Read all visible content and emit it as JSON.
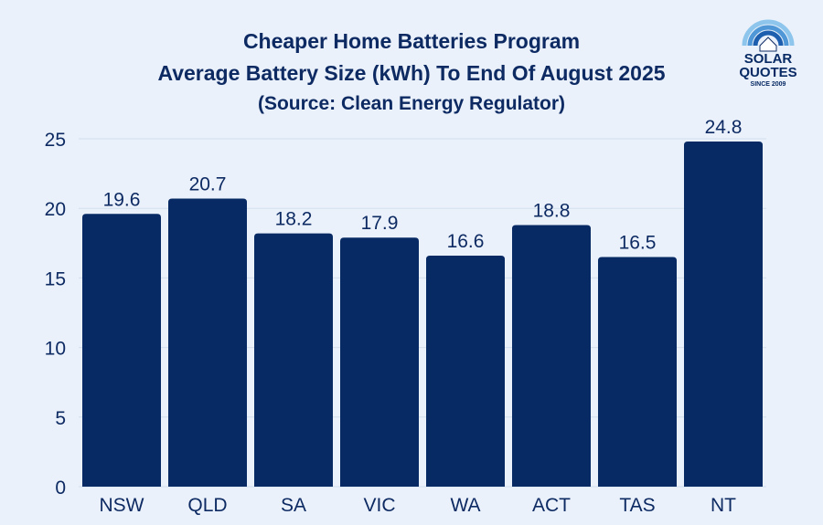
{
  "chart_data": {
    "type": "bar",
    "title_lines": [
      "Cheaper Home Batteries Program",
      "Average Battery Size (kWh) To End Of August 2025"
    ],
    "subtitle": "(Source: Clean Energy Regulator)",
    "categories": [
      "NSW",
      "QLD",
      "SA",
      "VIC",
      "WA",
      "ACT",
      "TAS",
      "NT"
    ],
    "values": [
      19.6,
      20.7,
      18.2,
      17.9,
      16.6,
      18.8,
      16.5,
      24.8
    ],
    "value_labels": [
      "19.6",
      "20.7",
      "18.2",
      "17.9",
      "16.6",
      "18.8",
      "16.5",
      "24.8"
    ],
    "y_ticks": [
      "0",
      "5",
      "10",
      "15",
      "20",
      "25"
    ],
    "y_tick_values": [
      0,
      5,
      10,
      15,
      20,
      25
    ],
    "ylim": [
      0,
      25
    ],
    "xlabel": "",
    "ylabel": "",
    "grid": true,
    "legend": "none",
    "bar_color": "#082a64",
    "text_color": "#0d2a63"
  },
  "logo": {
    "line1": "SOLAR",
    "line2": "QUOTES",
    "tagline": "SINCE 2009",
    "icon": "house-sun-logo-icon"
  }
}
